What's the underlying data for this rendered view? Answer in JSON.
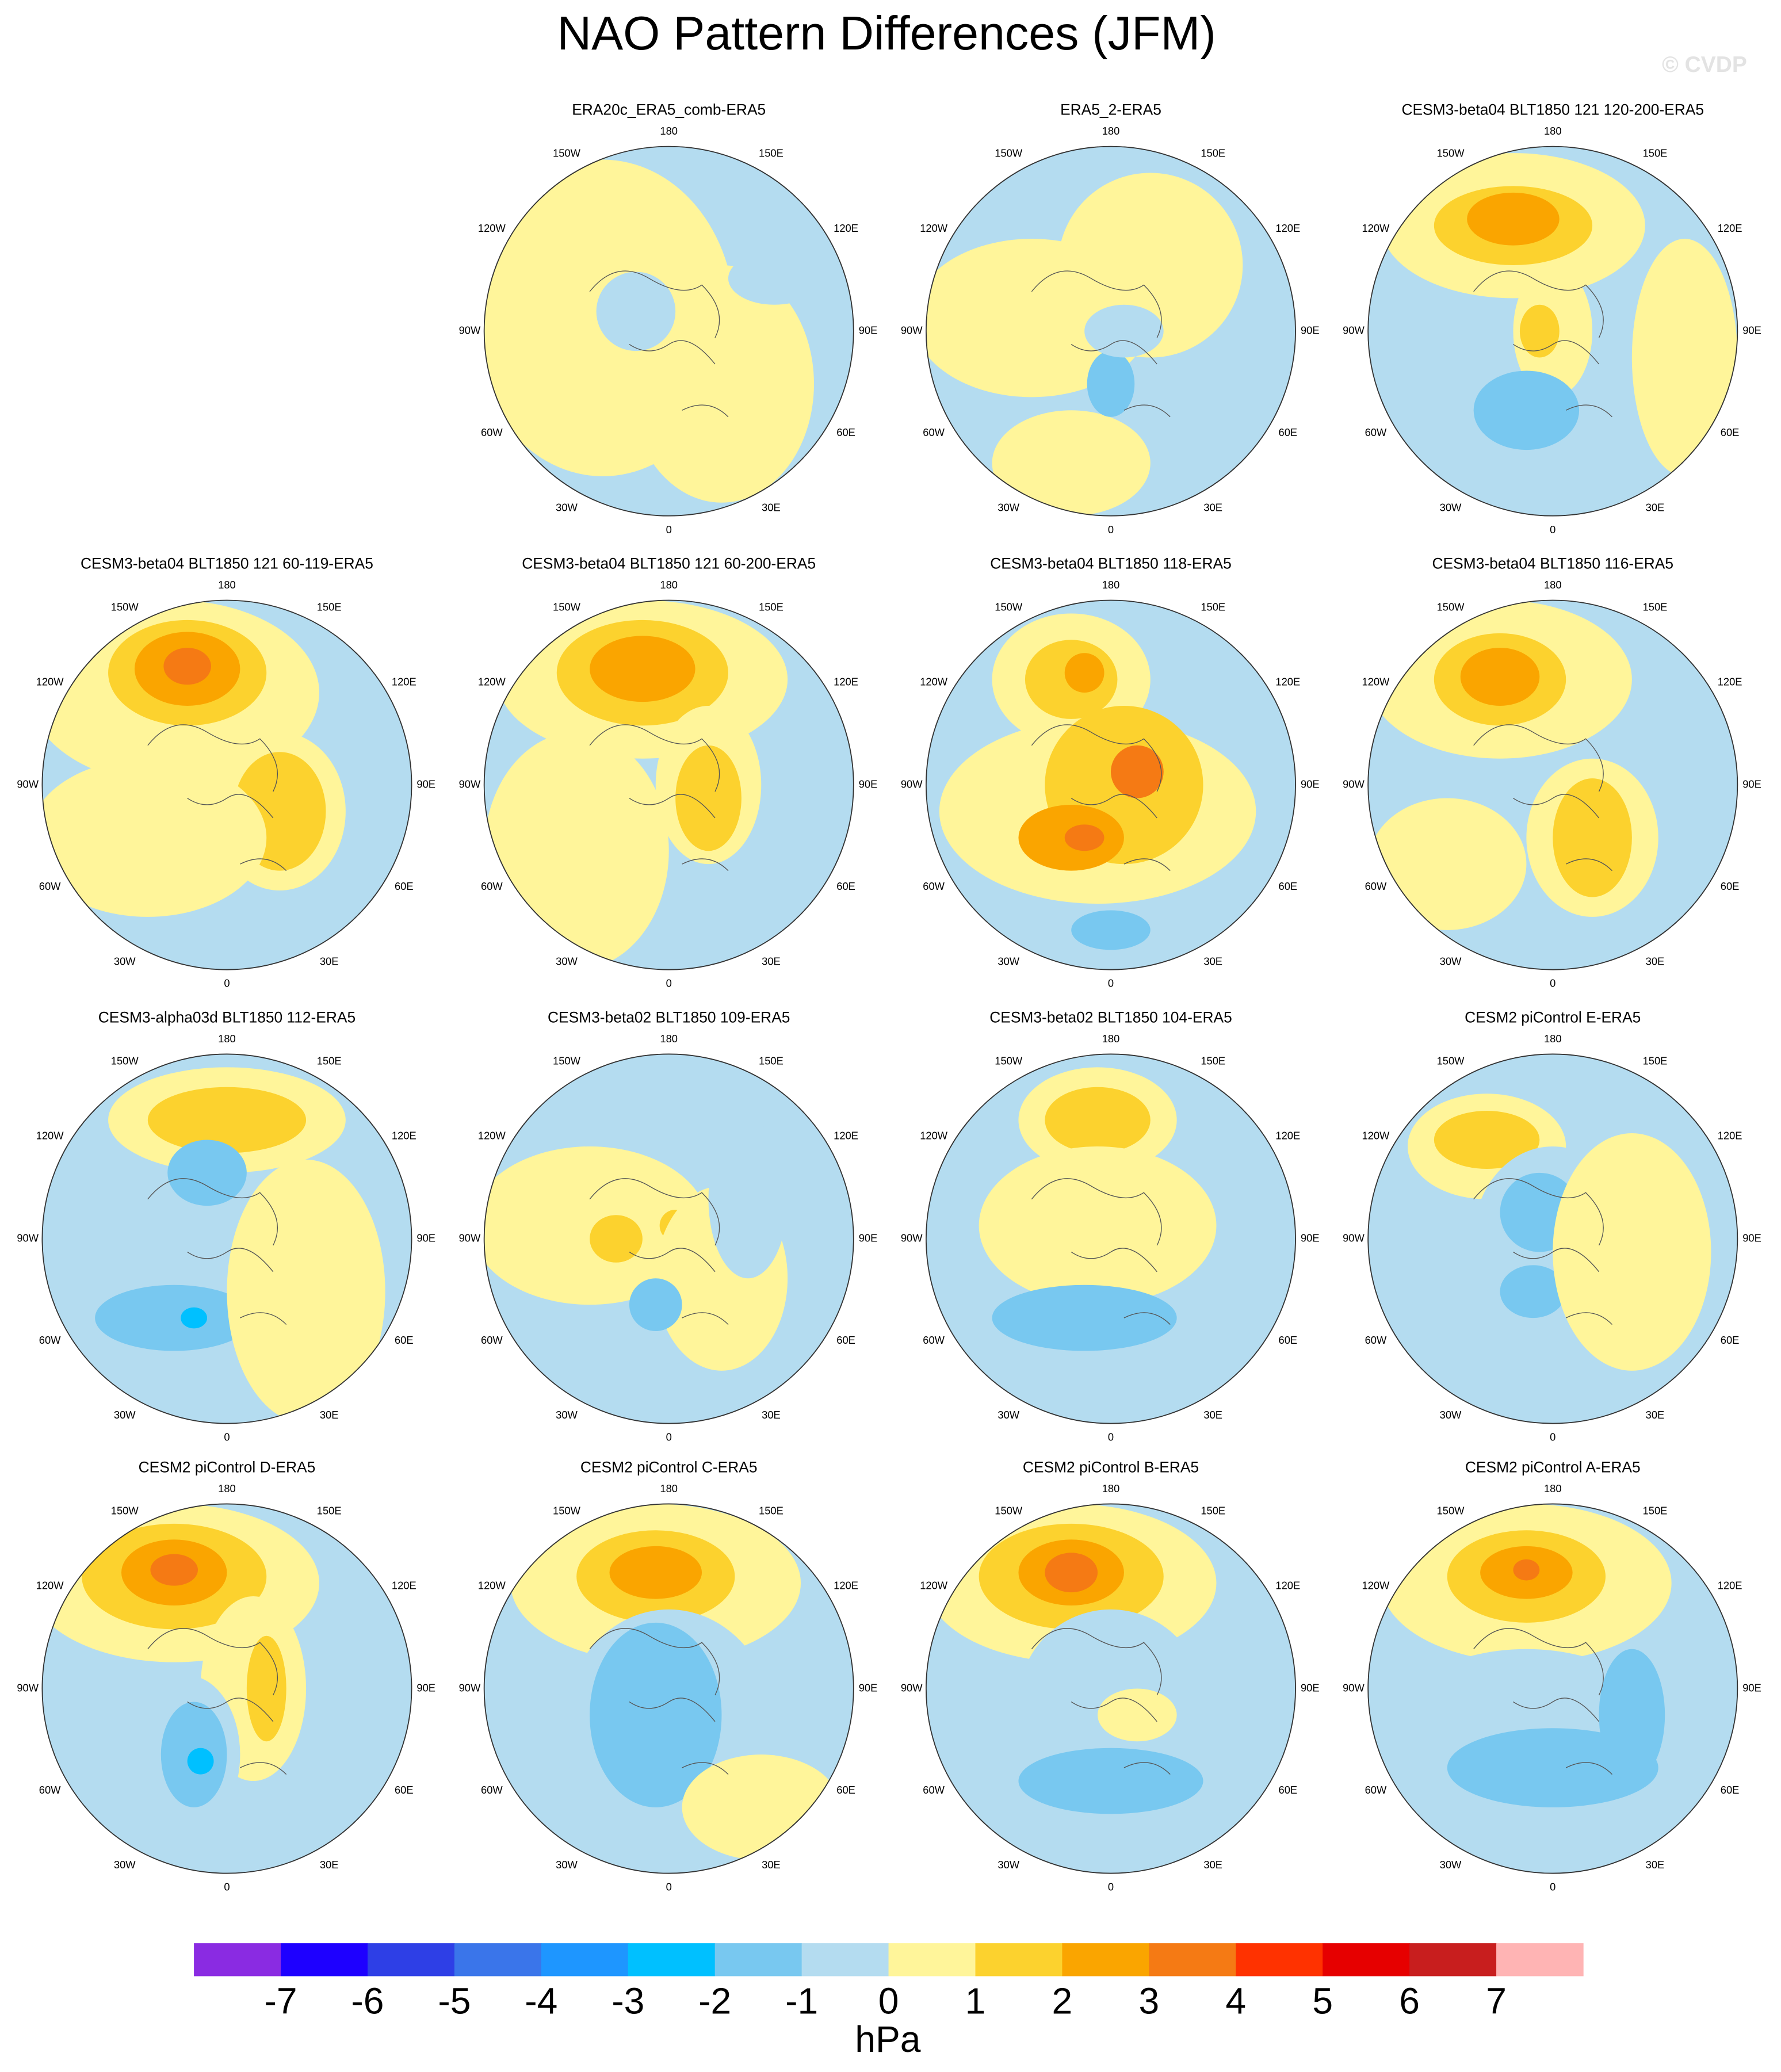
{
  "header": {
    "title": "NAO Pattern Differences (JFM)",
    "watermark": "© CVDP"
  },
  "longitude_labels": [
    "0",
    "30E",
    "60E",
    "90E",
    "120E",
    "150E",
    "180",
    "150W",
    "120W",
    "90W",
    "60W",
    "30W"
  ],
  "panels": [
    {
      "title": "ERA20c_ERA5_comb-ERA5"
    },
    {
      "title": "ERA5_2-ERA5"
    },
    {
      "title": "CESM3-beta04 BLT1850 121 120-200-ERA5"
    },
    {
      "title": "CESM3-beta04 BLT1850 121 60-119-ERA5"
    },
    {
      "title": "CESM3-beta04 BLT1850 121 60-200-ERA5"
    },
    {
      "title": "CESM3-beta04 BLT1850 118-ERA5"
    },
    {
      "title": "CESM3-beta04 BLT1850 116-ERA5"
    },
    {
      "title": "CESM3-alpha03d BLT1850 112-ERA5"
    },
    {
      "title": "CESM3-beta02 BLT1850 109-ERA5"
    },
    {
      "title": "CESM3-beta02 BLT1850 104-ERA5"
    },
    {
      "title": "CESM2 piControl E-ERA5"
    },
    {
      "title": "CESM2 piControl D-ERA5"
    },
    {
      "title": "CESM2 piControl C-ERA5"
    },
    {
      "title": "CESM2 piControl B-ERA5"
    },
    {
      "title": "CESM2 piControl A-ERA5"
    }
  ],
  "colorbar": {
    "ticks": [
      -7,
      -6,
      -5,
      -4,
      -3,
      -2,
      -1,
      0,
      1,
      2,
      3,
      4,
      5,
      6,
      7
    ],
    "colors": [
      "#8a2be2",
      "#1e00ff",
      "#2e3fe6",
      "#3a75ea",
      "#1e96ff",
      "#00c0ff",
      "#78c8f0",
      "#b4dcf0",
      "#fff59a",
      "#fcd22e",
      "#faa500",
      "#f57a14",
      "#ff3200",
      "#e60000",
      "#c81e1e",
      "#ffb4b4"
    ],
    "unit": "hPa"
  }
}
